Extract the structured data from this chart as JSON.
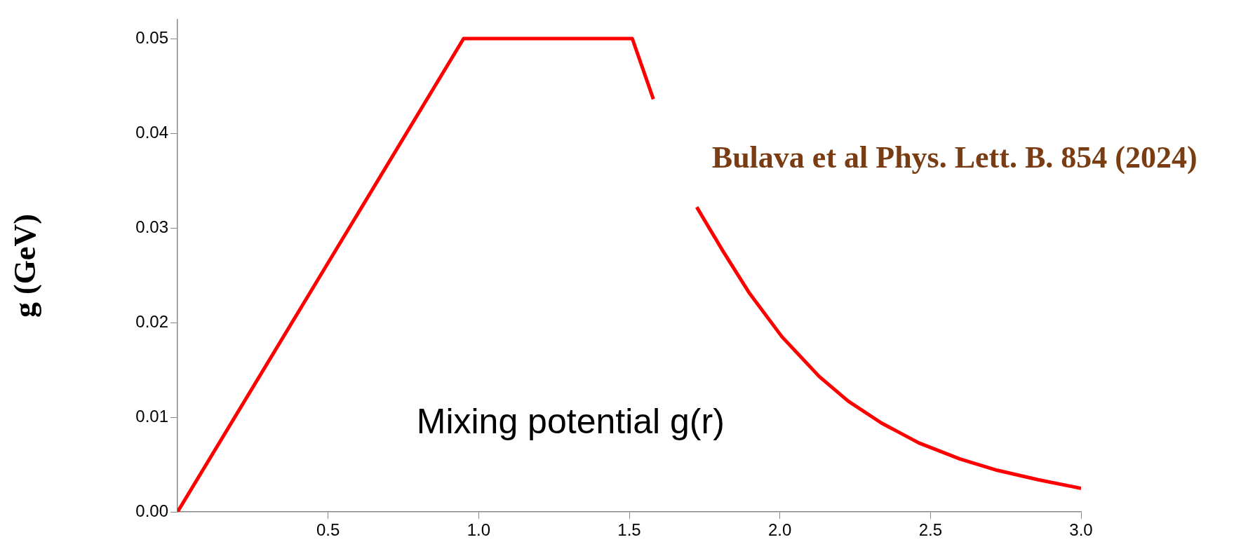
{
  "chart_data": {
    "type": "line",
    "ylabel": "g (GeV)",
    "annotations": [
      "Bulava et al Phys. Lett. B. 854 (2024)",
      "Mixing potential g(r)"
    ],
    "x": [
      0,
      0.95,
      1.51,
      1.58,
      1.65,
      1.724,
      1.814,
      1.897,
      2.007,
      2.131,
      2.227,
      2.337,
      2.461,
      2.598,
      2.722,
      2.858,
      3.0
    ],
    "series": [
      {
        "color": "#ff0000",
        "values": [
          0,
          0.05,
          0.05,
          0.0436,
          null,
          0.0322,
          0.0274,
          0.0232,
          0.0185,
          0.0143,
          0.0117,
          0.0094,
          0.0073,
          0.0056,
          0.0044,
          0.0034,
          0.0025
        ]
      }
    ],
    "xlim": [
      0,
      3.0
    ],
    "xticks": [
      {
        "value": 0.5,
        "label": "0.5"
      },
      {
        "value": 1,
        "label": "1.0"
      },
      {
        "value": 1.5,
        "label": "1.5"
      },
      {
        "value": 2,
        "label": "2.0"
      },
      {
        "value": 2.5,
        "label": "2.5"
      },
      {
        "value": 3,
        "label": "3.0"
      }
    ],
    "ylim": [
      0,
      0.052
    ],
    "yticks": [
      {
        "value": 0,
        "label": "0.00"
      },
      {
        "value": 0.01,
        "label": "0.01"
      },
      {
        "value": 0.02,
        "label": "0.02"
      },
      {
        "value": 0.03,
        "label": "0.03"
      },
      {
        "value": 0.04,
        "label": "0.04"
      },
      {
        "value": 0.05,
        "label": "0.05"
      }
    ],
    "grid": false,
    "legend": false,
    "marker": "none",
    "line_style": "solid"
  }
}
